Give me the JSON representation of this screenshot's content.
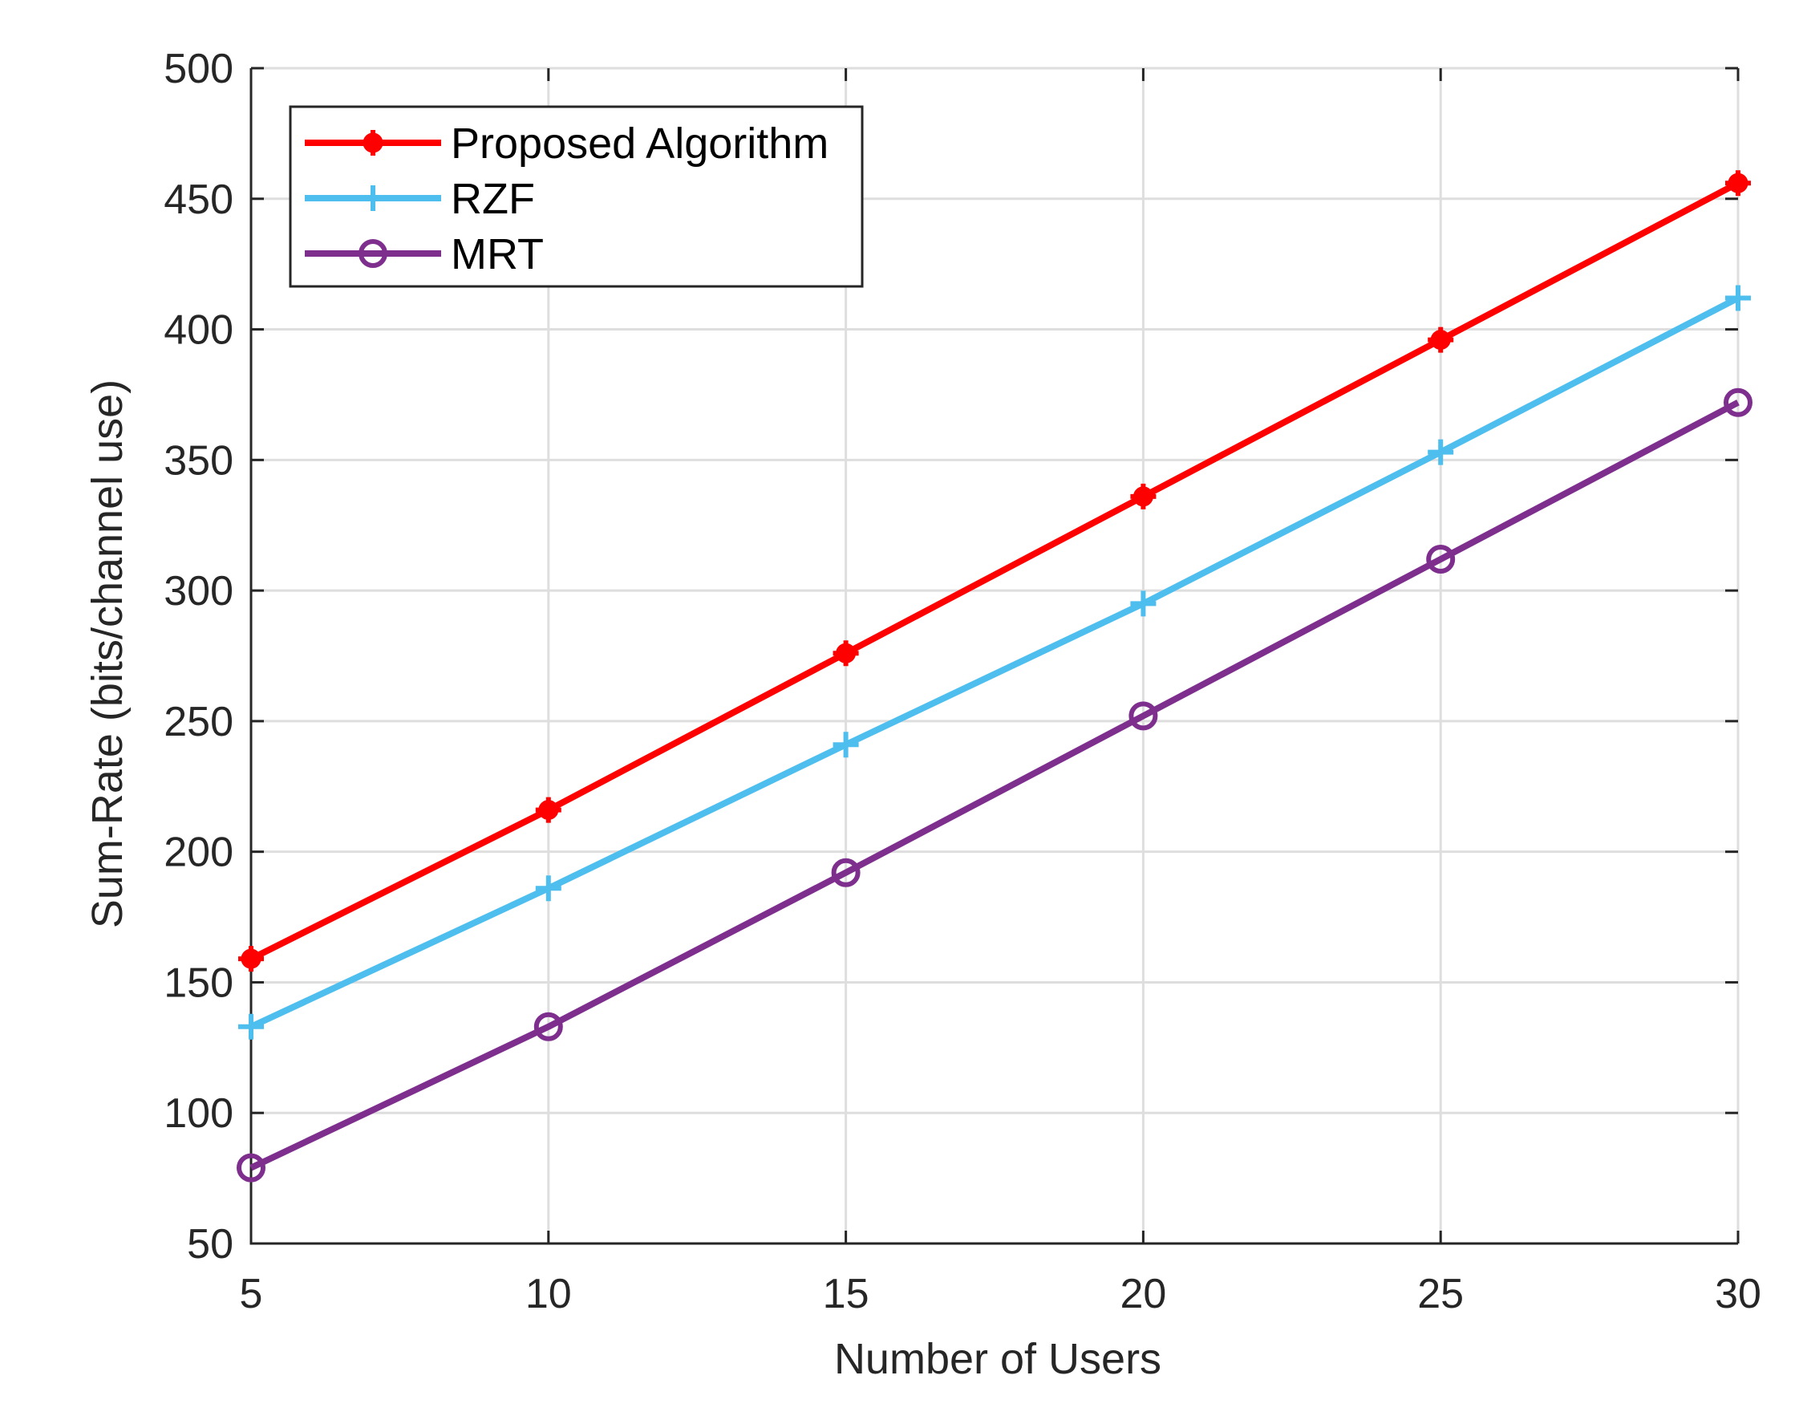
{
  "chart_data": {
    "type": "line",
    "title": "",
    "xlabel": "Number of Users",
    "ylabel": "Sum-Rate (bits/channel use)",
    "xlim": [
      5,
      30
    ],
    "ylim": [
      50,
      500
    ],
    "xticks": [
      5,
      10,
      15,
      20,
      25,
      30
    ],
    "yticks": [
      50,
      100,
      150,
      200,
      250,
      300,
      350,
      400,
      450,
      500
    ],
    "grid": true,
    "legend_position": "top-left",
    "x": [
      5,
      10,
      15,
      20,
      25,
      30
    ],
    "series": [
      {
        "name": "Proposed Algorithm",
        "color": "#ff0000",
        "marker": "filled-star",
        "values": [
          159,
          216,
          276,
          336,
          396,
          456
        ]
      },
      {
        "name": "RZF",
        "color": "#4dbeee",
        "marker": "plus",
        "values": [
          133,
          186,
          241,
          295,
          353,
          412
        ]
      },
      {
        "name": "MRT",
        "color": "#7e2f8e",
        "marker": "circle",
        "values": [
          79,
          133,
          192,
          252,
          312,
          372
        ]
      }
    ]
  }
}
